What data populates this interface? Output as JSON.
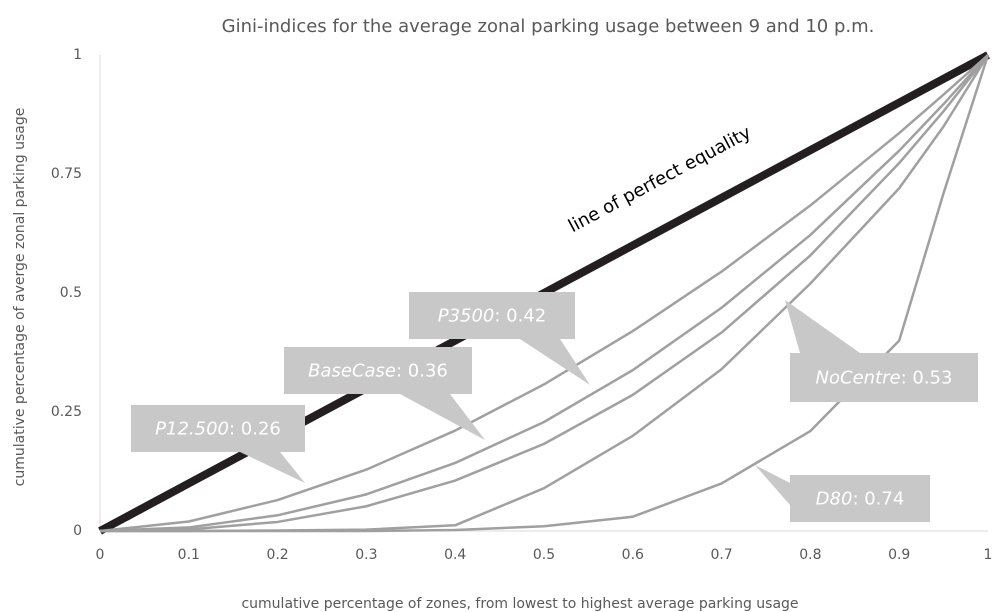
{
  "chart_data": {
    "type": "line",
    "title": "Gini-indices for the average zonal parking usage between 9 and 10 p.m.",
    "x_label": "cumulative percentage of zones, from lowest to highest average parking usage",
    "y_label": "cumulative percentage of averge zonal parking usage",
    "annotation": "line of perfect equality",
    "x": [
      0,
      0.1,
      0.2,
      0.3,
      0.4,
      0.5,
      0.6,
      0.7,
      0.8,
      0.9,
      0.95,
      1
    ],
    "series": [
      {
        "color": "#231f20",
        "values": [
          0,
          0.1,
          0.2,
          0.3,
          0.4,
          0.5,
          0.6,
          0.7,
          0.8,
          0.9,
          0.95,
          1
        ]
      },
      {
        "name": "P12.500",
        "gini": 0.26,
        "gini_label": ": 0.26",
        "color": "#a0a0a0",
        "values": [
          0,
          0.02,
          0.065,
          0.129,
          0.211,
          0.308,
          0.42,
          0.545,
          0.684,
          0.836,
          0.917,
          1
        ]
      },
      {
        "name": "BaseCase",
        "gini": 0.36,
        "gini_label": ": 0.36",
        "color": "#a0a0a0",
        "values": [
          0,
          0.0075,
          0.033,
          0.077,
          0.143,
          0.229,
          0.338,
          0.469,
          0.622,
          0.799,
          0.897,
          1
        ]
      },
      {
        "name": "P3500",
        "gini": 0.42,
        "gini_label": ": 0.42",
        "color": "#a0a0a0",
        "values": [
          0,
          0.0035,
          0.019,
          0.052,
          0.106,
          0.183,
          0.286,
          0.417,
          0.579,
          0.773,
          0.882,
          1
        ]
      },
      {
        "name": "NoCentre",
        "gini": 0.53,
        "gini_label": ": 0.53",
        "color": "#a0a0a0",
        "values": [
          0,
          0,
          0.001,
          0.003,
          0.012,
          0.09,
          0.2,
          0.34,
          0.52,
          0.72,
          0.85,
          1
        ]
      },
      {
        "name": "D80",
        "gini": 0.74,
        "gini_label": ": 0.74",
        "color": "#a0a0a0",
        "values": [
          0,
          0,
          0,
          0,
          0.002,
          0.01,
          0.03,
          0.1,
          0.21,
          0.4,
          0.71,
          1
        ]
      }
    ],
    "xlim": [
      0,
      1
    ],
    "ylim": [
      0,
      1
    ],
    "xticks": [
      0,
      0.1,
      0.2,
      0.3,
      0.4,
      0.5,
      0.6,
      0.7,
      0.8,
      0.9,
      1
    ],
    "yticks": [
      0,
      0.25,
      0.5,
      0.75,
      1
    ]
  }
}
